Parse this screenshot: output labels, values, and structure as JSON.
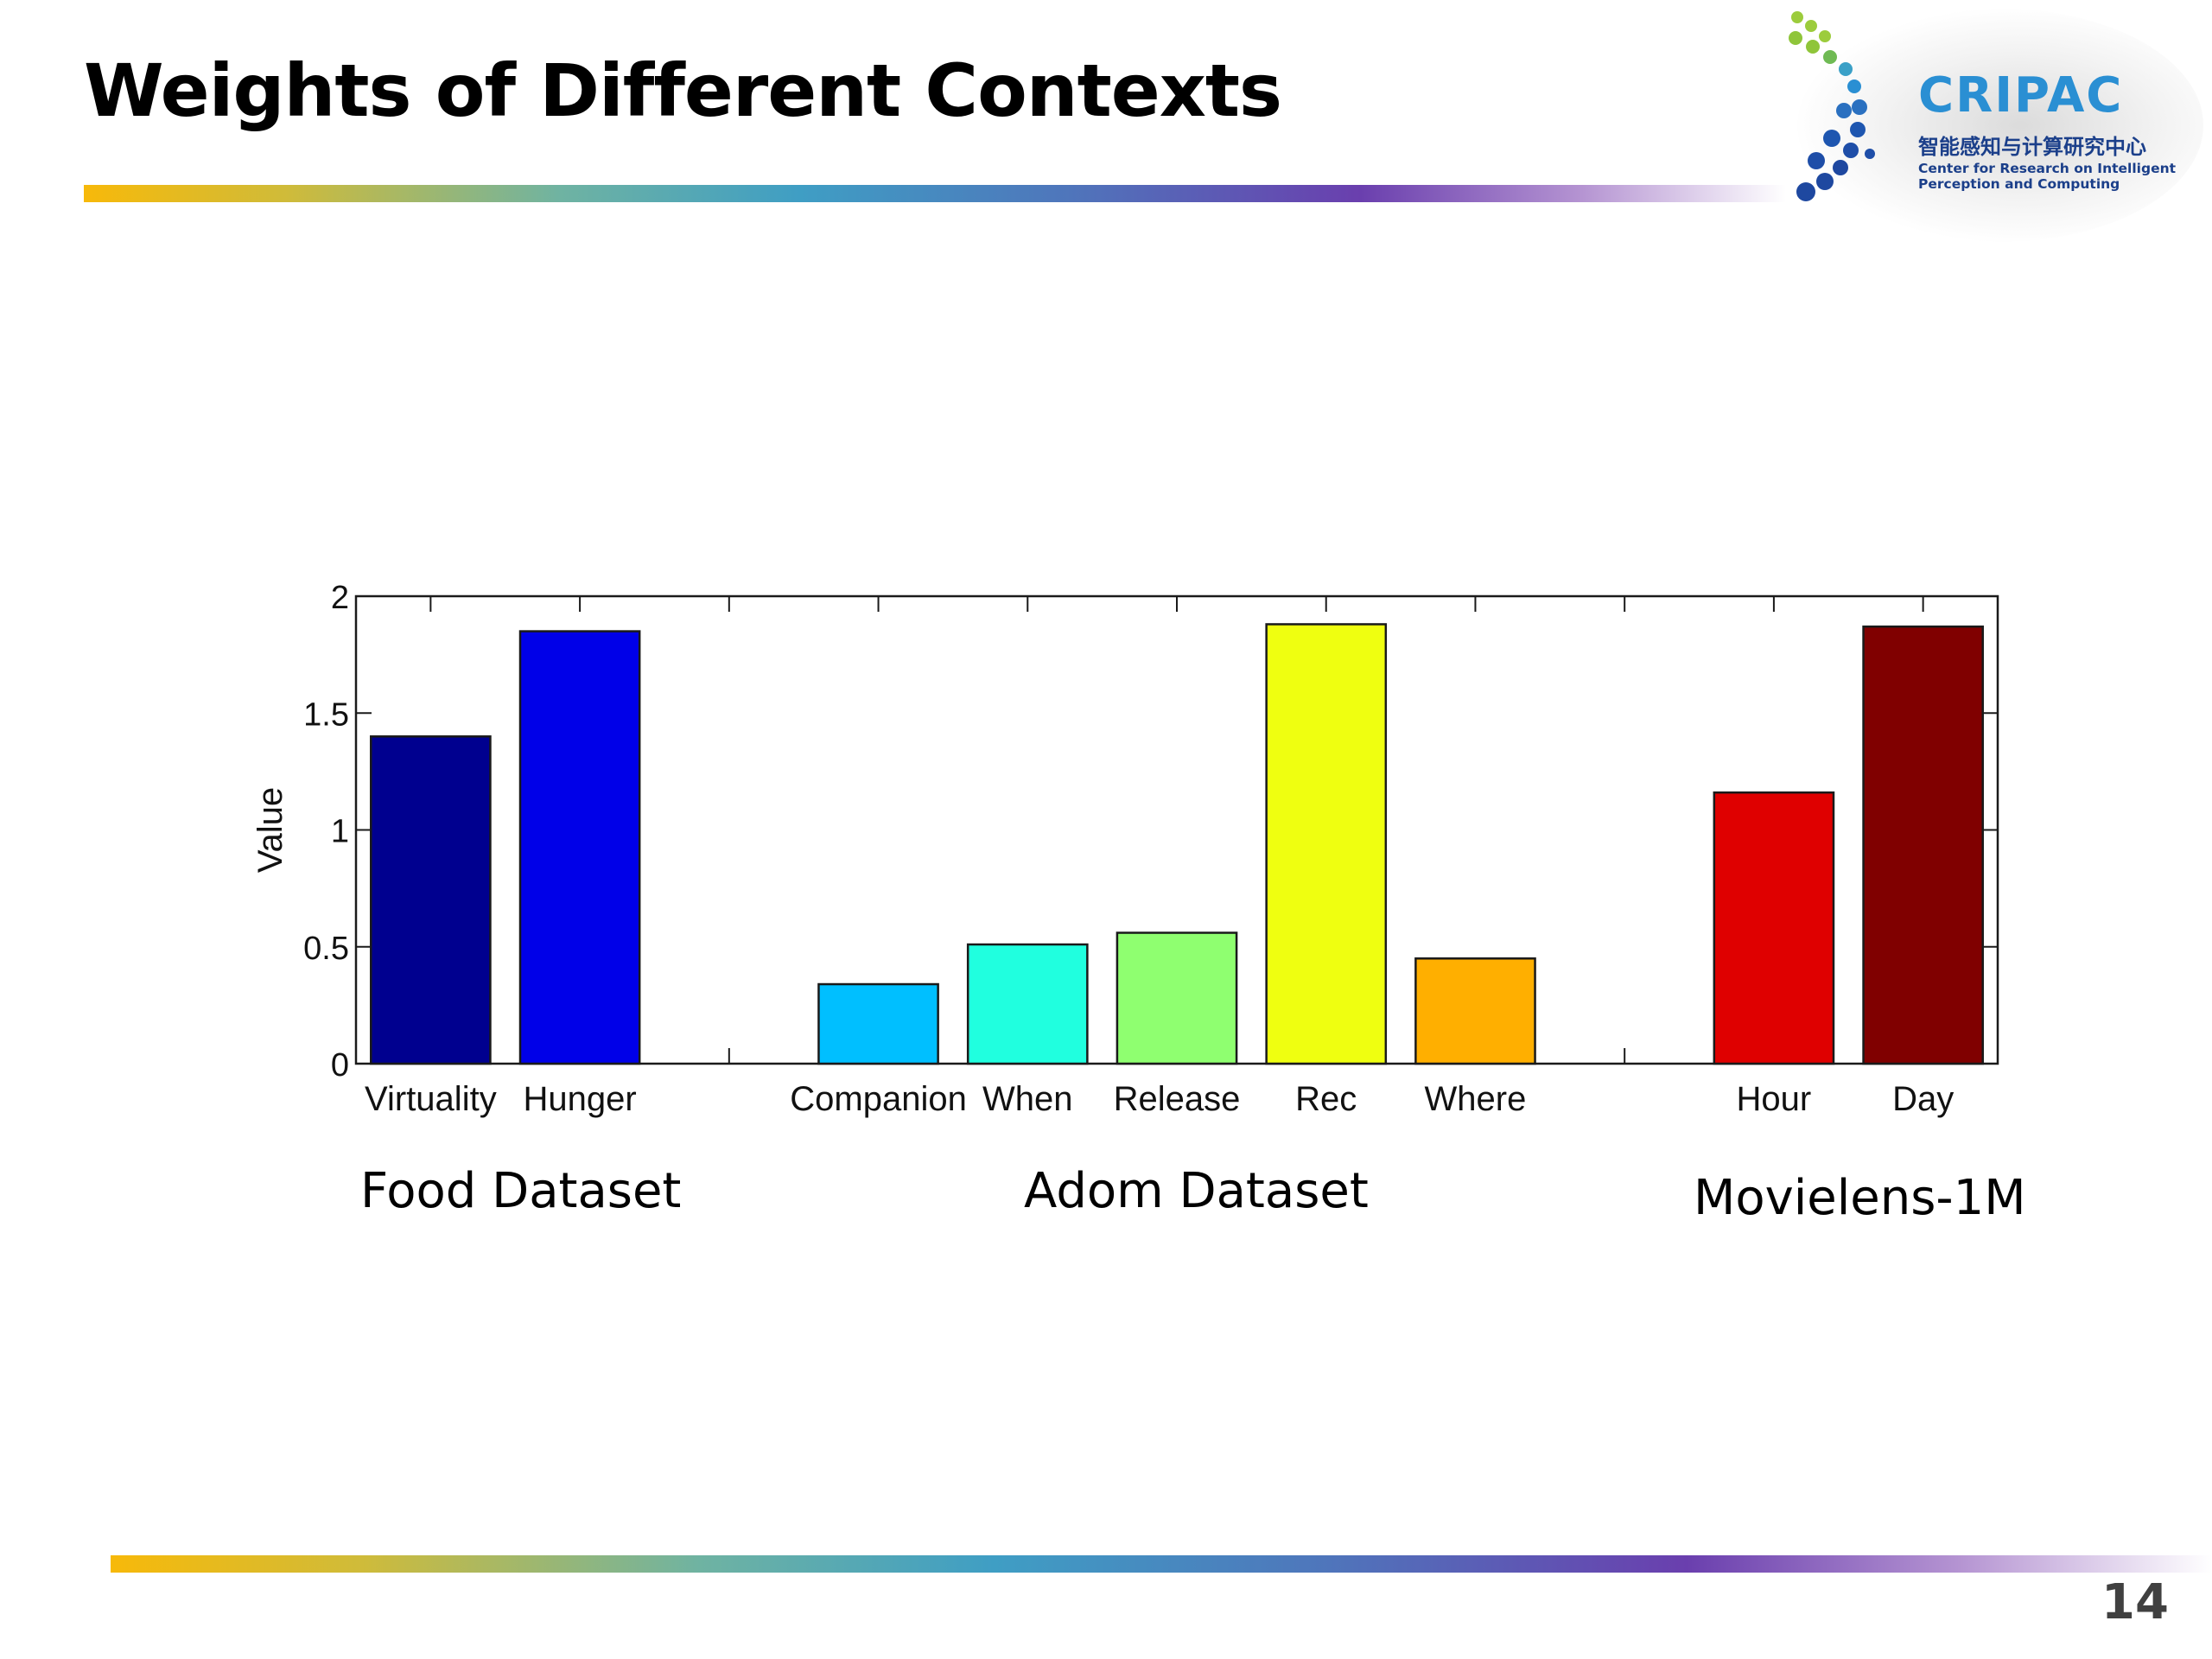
{
  "slide": {
    "title": "Weights of Different Contexts",
    "page_number": "14"
  },
  "logo": {
    "name": "CRIPAC",
    "subtitle_cn": "智能感知与计算研究中心",
    "subtitle_en_line1": "Center for Research on Intelligent",
    "subtitle_en_line2": "Perception and Computing",
    "icon": "dot-arc-logo-icon"
  },
  "groups": [
    {
      "label": "Food Dataset"
    },
    {
      "label": "Adom Dataset"
    },
    {
      "label": "Movielens-1M"
    }
  ],
  "chart_data": {
    "type": "bar",
    "ylabel": "Value",
    "ylim": [
      0,
      2
    ],
    "yticks": [
      "0",
      "0.5",
      "1",
      "1.5",
      "2"
    ],
    "grid": false,
    "bars": [
      {
        "label": "Virtuality",
        "value": 1.4,
        "color": "#00008f",
        "group": 0
      },
      {
        "label": "Hunger",
        "value": 1.85,
        "color": "#0000e8",
        "group": 0
      },
      {
        "label": "Companion",
        "value": 0.34,
        "color": "#00bfff",
        "group": 1
      },
      {
        "label": "When",
        "value": 0.51,
        "color": "#20ffdf",
        "group": 1
      },
      {
        "label": "Release",
        "value": 0.56,
        "color": "#8fff70",
        "group": 1
      },
      {
        "label": "Rec",
        "value": 1.88,
        "color": "#efff10",
        "group": 1
      },
      {
        "label": "Where",
        "value": 0.45,
        "color": "#ffaf00",
        "group": 1
      },
      {
        "label": "Hour",
        "value": 1.16,
        "color": "#df0000",
        "group": 2
      },
      {
        "label": "Day",
        "value": 1.87,
        "color": "#800000",
        "group": 2
      }
    ]
  }
}
